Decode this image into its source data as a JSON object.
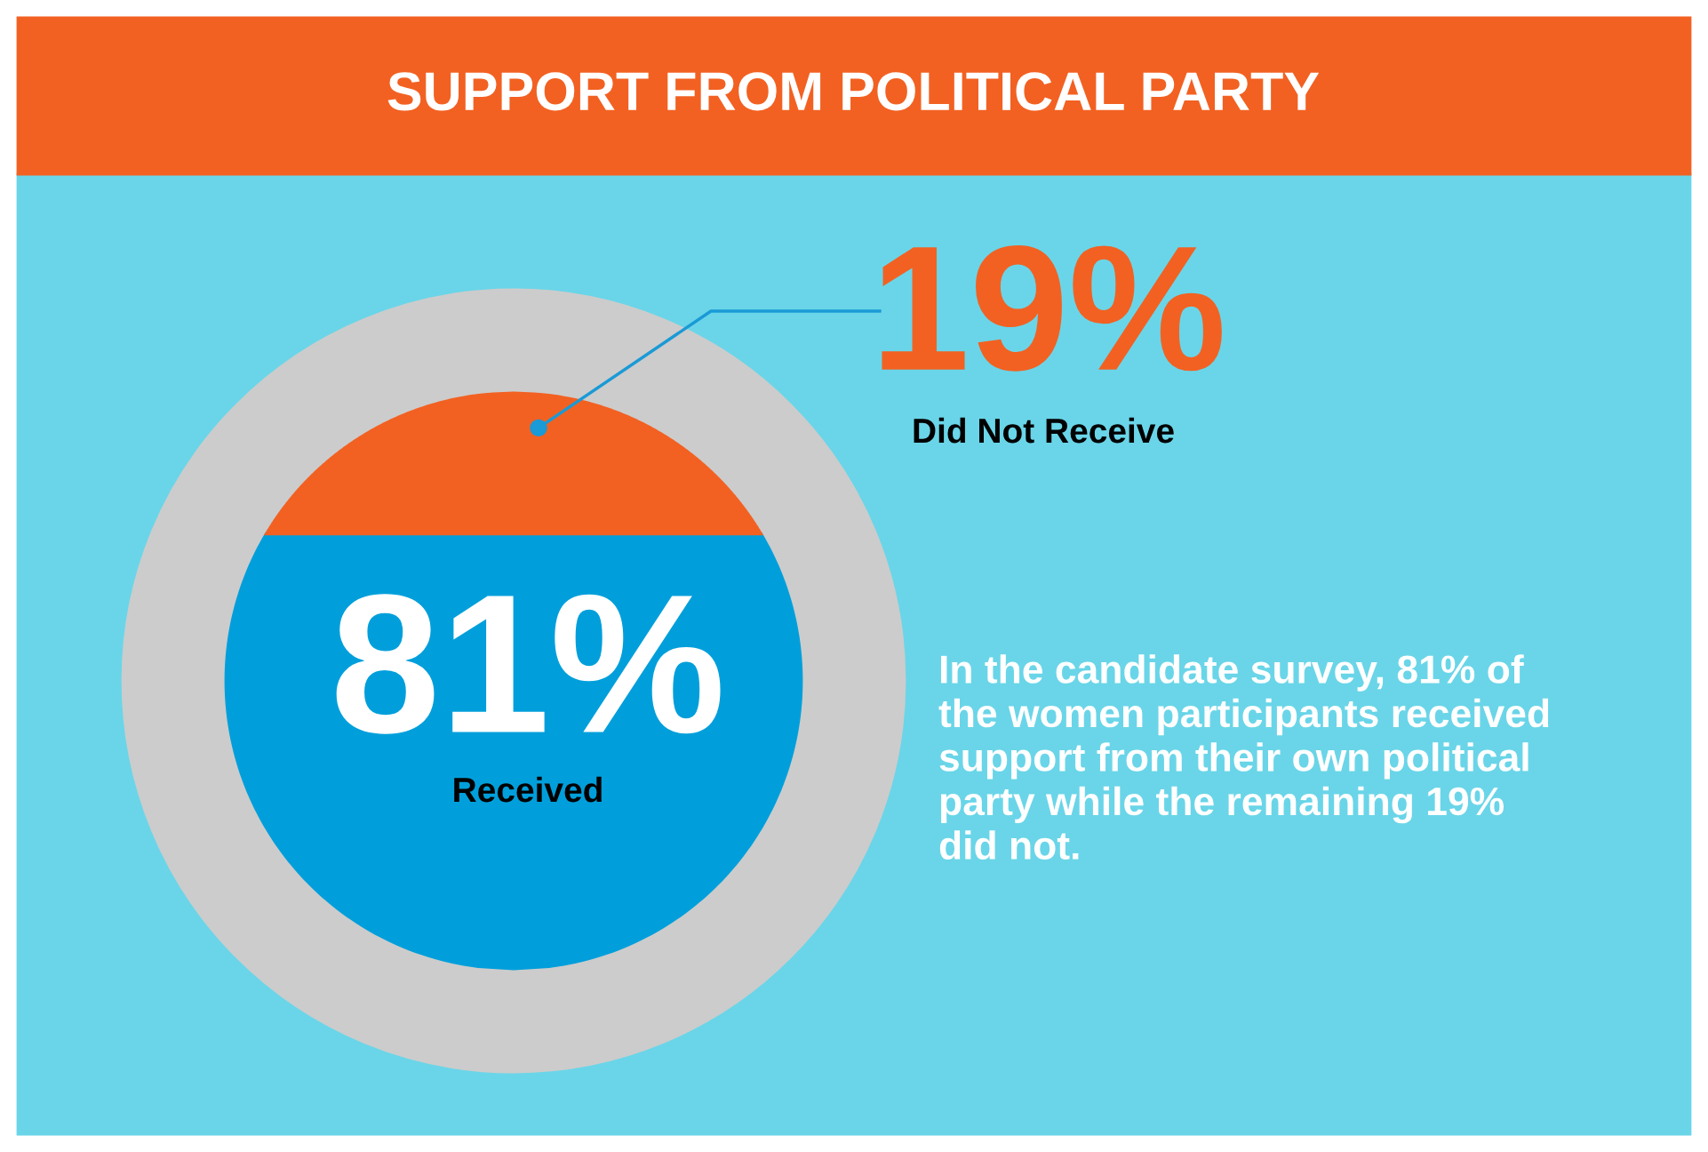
{
  "chart_data": {
    "type": "other",
    "title": "SUPPORT FROM POLITICAL PARTY",
    "categories": [
      "Received",
      "Did Not Receive"
    ],
    "values": [
      81,
      19
    ],
    "colors": [
      "#009fdb",
      "#f26122"
    ],
    "value_labels": [
      "81%",
      "19%"
    ],
    "annotations": [
      "In the candidate survey, 81% of\nthe women participants received\nsupport from their own political\nparty while the remaining 19%\ndid not."
    ]
  }
}
